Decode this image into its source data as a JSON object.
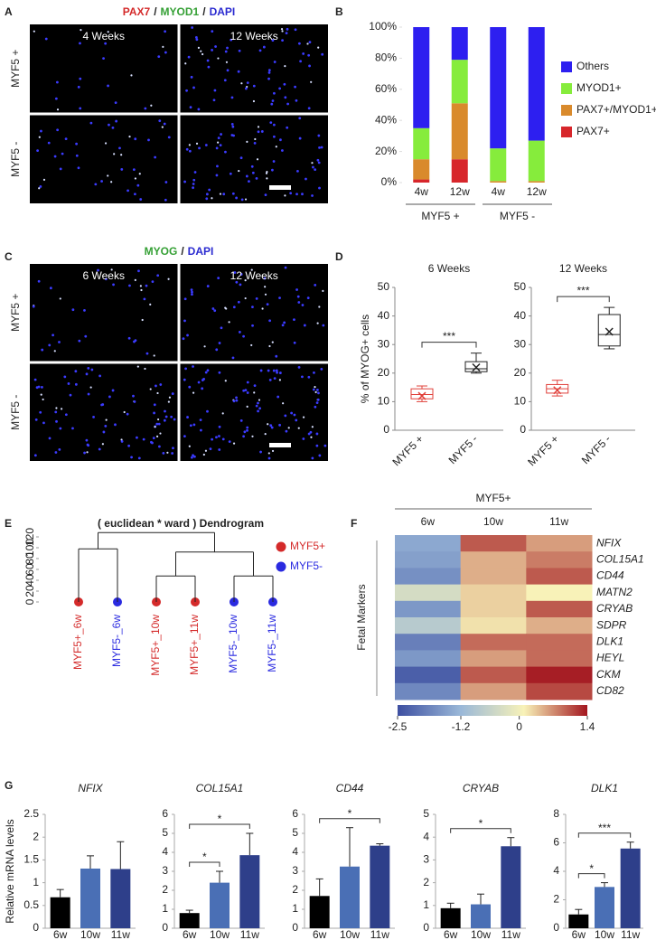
{
  "panels": [
    "A",
    "B",
    "C",
    "D",
    "E",
    "F",
    "G"
  ],
  "micrographs": [
    {
      "stain": [
        {
          "text": "PAX7",
          "color": "#d42a2a"
        },
        {
          "text": "/",
          "color": "#222222"
        },
        {
          "text": "MYOD1",
          "color": "#35a035"
        },
        {
          "text": "/",
          "color": "#222222"
        },
        {
          "text": "DAPI",
          "color": "#2a2ad0"
        }
      ],
      "columns": [
        "4 Weeks",
        "12 Weeks"
      ],
      "rows": [
        "MYF5 +",
        "MYF5 -"
      ]
    },
    {
      "stain": [
        {
          "text": "MYOG",
          "color": "#35a035"
        },
        {
          "text": "/",
          "color": "#222222"
        },
        {
          "text": "DAPI",
          "color": "#2a2ad0"
        }
      ],
      "columns": [
        "6 Weeks",
        "12 Weeks"
      ],
      "rows": [
        "MYF5 +",
        "MYF5 -"
      ]
    }
  ],
  "chart_data": [
    {
      "type": "stacked_bar",
      "groups": [
        {
          "name": "MYF5 +",
          "categories": [
            "4w",
            "12w"
          ]
        },
        {
          "name": "MYF5 -",
          "categories": [
            "4w",
            "12w"
          ]
        }
      ],
      "series": [
        {
          "name": "PAX7+",
          "color": "#d7262b",
          "values": [
            2,
            15,
            0,
            0
          ]
        },
        {
          "name": "PAX7+/MYOD1+",
          "color": "#d98a2c",
          "values": [
            13,
            36,
            1,
            1
          ]
        },
        {
          "name": "MYOD1+",
          "color": "#86ec3c",
          "values": [
            20,
            28,
            21,
            26
          ]
        },
        {
          "name": "Others",
          "color": "#2d1ff0",
          "values": [
            65,
            21,
            78,
            73
          ]
        }
      ],
      "ylim": [
        0,
        100
      ],
      "yticks": [
        {
          "value": 0,
          "label": "0%"
        },
        {
          "value": 20,
          "label": "20%"
        },
        {
          "value": 40,
          "label": "40%"
        },
        {
          "value": 60,
          "label": "60%"
        },
        {
          "value": 80,
          "label": "80%"
        },
        {
          "value": 100,
          "label": "100%"
        }
      ],
      "legend": "right"
    },
    {
      "type": "box",
      "title": "6 Weeks",
      "ylabel": "% of MYOG+ cells",
      "categories": [
        "MYF5 +",
        "MYF5 -"
      ],
      "colors": [
        "#e0403a",
        "#222222"
      ],
      "boxes": [
        {
          "min": 10,
          "q1": 11,
          "median": 12.5,
          "q3": 14.5,
          "max": 15.5,
          "mean": 12
        },
        {
          "min": 20,
          "q1": 20.5,
          "median": 21.5,
          "q3": 24,
          "max": 27,
          "mean": 22
        }
      ],
      "ylim": [
        0,
        50
      ],
      "yticks": [
        0,
        10,
        20,
        30,
        40,
        50
      ],
      "brackets": [
        {
          "between": [
            "MYF5 +",
            "MYF5 -"
          ],
          "label": "***"
        }
      ]
    },
    {
      "type": "box",
      "title": "12 Weeks",
      "categories": [
        "MYF5 +",
        "MYF5 -"
      ],
      "colors": [
        "#e0403a",
        "#222222"
      ],
      "boxes": [
        {
          "min": 12,
          "q1": 13,
          "median": 14.5,
          "q3": 16,
          "max": 17.5,
          "mean": 14
        },
        {
          "min": 28.5,
          "q1": 29.5,
          "median": 33.5,
          "q3": 40.5,
          "max": 43,
          "mean": 34.5
        }
      ],
      "ylim": [
        0,
        50
      ],
      "yticks": [
        0,
        10,
        20,
        30,
        40,
        50
      ],
      "brackets": [
        {
          "between": [
            "MYF5 +",
            "MYF5 -"
          ],
          "label": "***"
        }
      ]
    },
    {
      "type": "dendrogram",
      "title": "( euclidean * ward ) Dendrogram",
      "ylim": [
        0,
        130
      ],
      "yticks": [
        0,
        20,
        40,
        60,
        80,
        100,
        120
      ],
      "legend": [
        {
          "name": "MYF5+",
          "color": "#d42a2a"
        },
        {
          "name": "MYF5-",
          "color": "#2a2ae0"
        }
      ],
      "tree": {
        "height": 128,
        "children": [
          {
            "height": 98,
            "children": [
              {
                "label": "MYF5+_6w",
                "color": "#d42a2a"
              },
              {
                "label": "MYF5-_6w",
                "color": "#2a2ae0"
              }
            ]
          },
          {
            "height": 92,
            "children": [
              {
                "height": 48,
                "children": [
                  {
                    "label": "MYF5+_10w",
                    "color": "#d42a2a"
                  },
                  {
                    "label": "MYF5+_11w",
                    "color": "#d42a2a"
                  }
                ]
              },
              {
                "height": 48,
                "children": [
                  {
                    "label": "MYF5-_10w",
                    "color": "#2a2ae0"
                  },
                  {
                    "label": "MYF5-_11w",
                    "color": "#2a2ae0"
                  }
                ]
              }
            ]
          }
        ]
      }
    },
    {
      "type": "heatmap",
      "title": "MYF5+",
      "columns": [
        "6w",
        "10w",
        "11w"
      ],
      "row_group": "Fetal Markers",
      "rows": [
        "NFIX",
        "COL15A1",
        "CD44",
        "MATN2",
        "CRYAB",
        "SDPR",
        "DLK1",
        "HEYL",
        "CKM",
        "CD82"
      ],
      "values": [
        [
          -1.4,
          1.0,
          0.6
        ],
        [
          -1.5,
          0.5,
          0.8
        ],
        [
          -1.7,
          0.5,
          1.0
        ],
        [
          -0.4,
          0.3,
          0.1
        ],
        [
          -1.6,
          0.3,
          1.0
        ],
        [
          -0.8,
          0.2,
          0.5
        ],
        [
          -1.9,
          0.9,
          0.9
        ],
        [
          -1.6,
          0.6,
          0.9
        ],
        [
          -2.3,
          1.0,
          1.35
        ],
        [
          -1.8,
          0.6,
          1.1
        ]
      ],
      "zlim": [
        -2.5,
        1.4
      ],
      "zticks": [
        -2.5,
        -1.2,
        0,
        1.4
      ],
      "colors": [
        "#3d4fa1",
        "#9ab8d8",
        "#f8f2b8",
        "#a3161f"
      ]
    },
    {
      "type": "bar",
      "title": "NFIX",
      "ylabel": "Relative mRNA levels",
      "categories": [
        "6w",
        "10w",
        "11w"
      ],
      "colors": [
        "#000000",
        "#4a6fb5",
        "#2e3f8a"
      ],
      "values": [
        0.68,
        1.31,
        1.3
      ],
      "errors": [
        0.17,
        0.28,
        0.6
      ],
      "ylim": [
        0,
        2.5
      ],
      "yticks": [
        0,
        0.5,
        1,
        1.5,
        2,
        2.5
      ],
      "brackets": []
    },
    {
      "type": "bar",
      "title": "COL15A1",
      "categories": [
        "6w",
        "10w",
        "11w"
      ],
      "colors": [
        "#000000",
        "#4a6fb5",
        "#2e3f8a"
      ],
      "values": [
        0.8,
        2.4,
        3.85
      ],
      "errors": [
        0.15,
        0.6,
        1.15
      ],
      "ylim": [
        0,
        6
      ],
      "yticks": [
        0,
        1,
        2,
        3,
        4,
        5,
        6
      ],
      "brackets": [
        {
          "between": [
            "6w",
            "10w"
          ],
          "label": "*"
        },
        {
          "between": [
            "6w",
            "11w"
          ],
          "label": "*"
        }
      ]
    },
    {
      "type": "bar",
      "title": "CD44",
      "categories": [
        "6w",
        "10w",
        "11w"
      ],
      "colors": [
        "#000000",
        "#4a6fb5",
        "#2e3f8a"
      ],
      "values": [
        1.7,
        3.25,
        4.35
      ],
      "errors": [
        0.9,
        2.05,
        0.1
      ],
      "ylim": [
        0,
        6
      ],
      "yticks": [
        0,
        1,
        2,
        3,
        4,
        5,
        6
      ],
      "brackets": [
        {
          "between": [
            "6w",
            "11w"
          ],
          "label": "*"
        }
      ]
    },
    {
      "type": "bar",
      "title": "CRYAB",
      "categories": [
        "6w",
        "10w",
        "11w"
      ],
      "colors": [
        "#000000",
        "#4a6fb5",
        "#2e3f8a"
      ],
      "values": [
        0.88,
        1.05,
        3.6
      ],
      "errors": [
        0.22,
        0.45,
        0.38
      ],
      "ylim": [
        0,
        5
      ],
      "yticks": [
        0,
        1,
        2,
        3,
        4,
        5
      ],
      "brackets": [
        {
          "between": [
            "6w",
            "11w"
          ],
          "label": "*"
        }
      ]
    },
    {
      "type": "bar",
      "title": "DLK1",
      "categories": [
        "6w",
        "10w",
        "11w"
      ],
      "colors": [
        "#000000",
        "#4a6fb5",
        "#2e3f8a"
      ],
      "values": [
        0.97,
        2.9,
        5.6
      ],
      "errors": [
        0.35,
        0.3,
        0.45
      ],
      "ylim": [
        0,
        8
      ],
      "yticks": [
        0,
        2,
        4,
        6,
        8
      ],
      "brackets": [
        {
          "between": [
            "6w",
            "10w"
          ],
          "label": "*"
        },
        {
          "between": [
            "6w",
            "11w"
          ],
          "label": "***"
        }
      ]
    }
  ]
}
